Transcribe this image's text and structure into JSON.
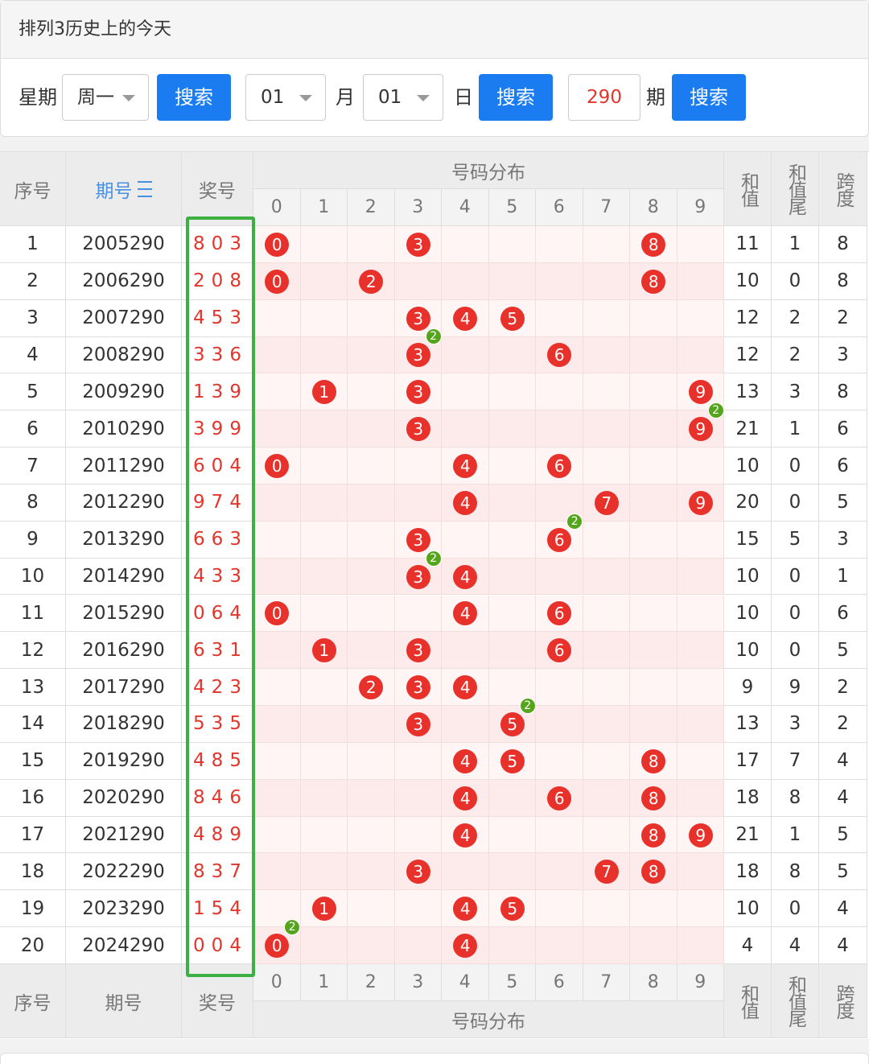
{
  "header": {
    "title": "排列3历史上的今天"
  },
  "search": {
    "weekday_label": "星期",
    "weekday": "周一",
    "button": "搜索",
    "month": "01",
    "month_label": "月",
    "day": "01",
    "day_label": "日",
    "issue": "290",
    "issue_label": "期"
  },
  "table": {
    "columns": {
      "seq": "序号",
      "issue": "期号",
      "number": "奖号",
      "distribution": "号码分布",
      "digits": [
        "0",
        "1",
        "2",
        "3",
        "4",
        "5",
        "6",
        "7",
        "8",
        "9"
      ],
      "sum": "和值",
      "sum_tail": "和值尾",
      "span": "跨度"
    },
    "rows": [
      {
        "seq": "1",
        "issue": "2005290",
        "number": [
          "8",
          "0",
          "3"
        ],
        "balls": [
          "0",
          "3",
          "8"
        ],
        "sum": "11",
        "sum_tail": "1",
        "span": "8"
      },
      {
        "seq": "2",
        "issue": "2006290",
        "number": [
          "2",
          "0",
          "8"
        ],
        "balls": [
          "0",
          "2",
          "8"
        ],
        "sum": "10",
        "sum_tail": "0",
        "span": "8"
      },
      {
        "seq": "3",
        "issue": "2007290",
        "number": [
          "4",
          "5",
          "3"
        ],
        "balls": [
          "3",
          "4",
          "5"
        ],
        "sum": "12",
        "sum_tail": "2",
        "span": "2"
      },
      {
        "seq": "4",
        "issue": "2008290",
        "number": [
          "3",
          "3",
          "6"
        ],
        "balls": [
          "3",
          "6"
        ],
        "repeat": {
          "digit": "3",
          "count": "2"
        },
        "sum": "12",
        "sum_tail": "2",
        "span": "3"
      },
      {
        "seq": "5",
        "issue": "2009290",
        "number": [
          "1",
          "3",
          "9"
        ],
        "balls": [
          "1",
          "3",
          "9"
        ],
        "sum": "13",
        "sum_tail": "3",
        "span": "8"
      },
      {
        "seq": "6",
        "issue": "2010290",
        "number": [
          "3",
          "9",
          "9"
        ],
        "balls": [
          "3",
          "9"
        ],
        "repeat": {
          "digit": "9",
          "count": "2"
        },
        "sum": "21",
        "sum_tail": "1",
        "span": "6"
      },
      {
        "seq": "7",
        "issue": "2011290",
        "number": [
          "6",
          "0",
          "4"
        ],
        "balls": [
          "0",
          "4",
          "6"
        ],
        "sum": "10",
        "sum_tail": "0",
        "span": "6"
      },
      {
        "seq": "8",
        "issue": "2012290",
        "number": [
          "9",
          "7",
          "4"
        ],
        "balls": [
          "4",
          "7",
          "9"
        ],
        "sum": "20",
        "sum_tail": "0",
        "span": "5"
      },
      {
        "seq": "9",
        "issue": "2013290",
        "number": [
          "6",
          "6",
          "3"
        ],
        "balls": [
          "3",
          "6"
        ],
        "repeat": {
          "digit": "6",
          "count": "2"
        },
        "sum": "15",
        "sum_tail": "5",
        "span": "3"
      },
      {
        "seq": "10",
        "issue": "2014290",
        "number": [
          "4",
          "3",
          "3"
        ],
        "balls": [
          "3",
          "4"
        ],
        "repeat": {
          "digit": "3",
          "count": "2"
        },
        "sum": "10",
        "sum_tail": "0",
        "span": "1"
      },
      {
        "seq": "11",
        "issue": "2015290",
        "number": [
          "0",
          "6",
          "4"
        ],
        "balls": [
          "0",
          "4",
          "6"
        ],
        "sum": "10",
        "sum_tail": "0",
        "span": "6"
      },
      {
        "seq": "12",
        "issue": "2016290",
        "number": [
          "6",
          "3",
          "1"
        ],
        "balls": [
          "1",
          "3",
          "6"
        ],
        "sum": "10",
        "sum_tail": "0",
        "span": "5"
      },
      {
        "seq": "13",
        "issue": "2017290",
        "number": [
          "4",
          "2",
          "3"
        ],
        "balls": [
          "2",
          "3",
          "4"
        ],
        "sum": "9",
        "sum_tail": "9",
        "span": "2"
      },
      {
        "seq": "14",
        "issue": "2018290",
        "number": [
          "5",
          "3",
          "5"
        ],
        "balls": [
          "3",
          "5"
        ],
        "repeat": {
          "digit": "5",
          "count": "2"
        },
        "sum": "13",
        "sum_tail": "3",
        "span": "2"
      },
      {
        "seq": "15",
        "issue": "2019290",
        "number": [
          "4",
          "8",
          "5"
        ],
        "balls": [
          "4",
          "5",
          "8"
        ],
        "sum": "17",
        "sum_tail": "7",
        "span": "4"
      },
      {
        "seq": "16",
        "issue": "2020290",
        "number": [
          "8",
          "4",
          "6"
        ],
        "balls": [
          "4",
          "6",
          "8"
        ],
        "sum": "18",
        "sum_tail": "8",
        "span": "4"
      },
      {
        "seq": "17",
        "issue": "2021290",
        "number": [
          "4",
          "8",
          "9"
        ],
        "balls": [
          "4",
          "8",
          "9"
        ],
        "sum": "21",
        "sum_tail": "1",
        "span": "5"
      },
      {
        "seq": "18",
        "issue": "2022290",
        "number": [
          "8",
          "3",
          "7"
        ],
        "balls": [
          "3",
          "7",
          "8"
        ],
        "sum": "18",
        "sum_tail": "8",
        "span": "5"
      },
      {
        "seq": "19",
        "issue": "2023290",
        "number": [
          "1",
          "5",
          "4"
        ],
        "balls": [
          "1",
          "4",
          "5"
        ],
        "sum": "10",
        "sum_tail": "0",
        "span": "4"
      },
      {
        "seq": "20",
        "issue": "2024290",
        "number": [
          "0",
          "0",
          "4"
        ],
        "balls": [
          "0",
          "4"
        ],
        "repeat": {
          "digit": "0",
          "count": "2"
        },
        "sum": "4",
        "sum_tail": "4",
        "span": "4"
      }
    ]
  }
}
